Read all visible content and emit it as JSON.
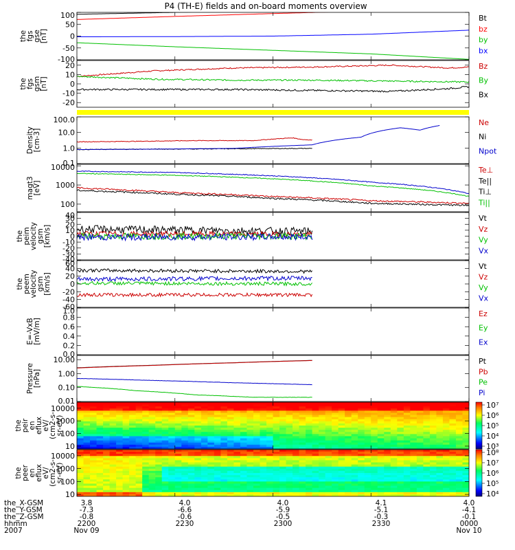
{
  "chart_data": {
    "type": "line",
    "title": "P4 (TH-E) fields and on-board moments overview",
    "x_tick_times": [
      "2200",
      "2230",
      "2300",
      "2330",
      "0000"
    ],
    "x_range_hours": [
      0,
      2
    ],
    "footer": {
      "rows": [
        {
          "label": "the_X-GSM",
          "values": [
            "3.8",
            "4.0",
            "4.0",
            "4.1",
            "4.0"
          ]
        },
        {
          "label": "the_Y-GSM",
          "values": [
            "-7.3",
            "-6.6",
            "-5.9",
            "-5.1",
            "-4.1"
          ]
        },
        {
          "label": "the_Z-GSM",
          "values": [
            "-0.8",
            "-0.6",
            "-0.5",
            "-0.3",
            "-0.1"
          ]
        },
        {
          "label": "hhmm",
          "values": [
            "2200",
            "2230",
            "2300",
            "2330",
            "0000"
          ]
        },
        {
          "label": "2007",
          "values": [
            "Nov 09",
            "",
            "",
            "",
            "Nov 10"
          ]
        }
      ]
    },
    "panels": [
      {
        "id": "fgs-gse",
        "ylabel": [
          "the",
          "fgs",
          "gse",
          "[nT]"
        ],
        "scale": "linear",
        "ylim": [
          -100,
          100
        ],
        "ticks": [
          "100",
          "50",
          "0",
          "-50",
          "-100"
        ],
        "tick_values": [
          100,
          50,
          0,
          -50,
          -100
        ],
        "legend": [
          {
            "name": "Bt",
            "color": "#000000"
          },
          {
            "name": "bz",
            "color": "#ff0000"
          },
          {
            "name": "by",
            "color": "#00c000"
          },
          {
            "name": "bx",
            "color": "#0000ff"
          }
        ],
        "series": [
          {
            "name": "Bt",
            "color": "#000000",
            "x": [
              0,
              0.5,
              1.0
            ],
            "y": [
              92,
              100,
              108
            ],
            "noise": 0
          },
          {
            "name": "bz",
            "color": "#ff0000",
            "x": [
              0,
              0.5,
              1.0,
              1.4
            ],
            "y": [
              70,
              83,
              95,
              104
            ],
            "noise": 0
          },
          {
            "name": "by",
            "color": "#00c000",
            "x": [
              0,
              0.5,
              1.0,
              1.5,
              2.0
            ],
            "y": [
              -28,
              -45,
              -60,
              -75,
              -98
            ],
            "noise": 0
          },
          {
            "name": "bx",
            "color": "#0000ff",
            "x": [
              0,
              0.5,
              1.0,
              1.5,
              2.0
            ],
            "y": [
              -3,
              -2,
              0,
              8,
              25
            ],
            "noise": 0
          }
        ]
      },
      {
        "id": "fgs-gsm",
        "ylabel": [
          "the",
          "fgs",
          "gsm",
          "[nT]"
        ],
        "scale": "linear",
        "ylim": [
          -25,
          25
        ],
        "ticks": [
          "20",
          "10",
          "0",
          "-10",
          "-20"
        ],
        "tick_values": [
          20,
          10,
          0,
          -10,
          -20
        ],
        "legend": [
          {
            "name": "Bz",
            "color": "#cc0000"
          },
          {
            "name": "By",
            "color": "#00c000"
          },
          {
            "name": "Bx",
            "color": "#000000"
          }
        ],
        "series": [
          {
            "name": "Bz",
            "color": "#cc0000",
            "x": [
              0,
              0.4,
              0.8,
              1.2,
              1.6,
              1.9,
              2.0
            ],
            "y": [
              8,
              14,
              17,
              18,
              20,
              17,
              18
            ],
            "noise": 0.6
          },
          {
            "name": "By",
            "color": "#00c000",
            "x": [
              0,
              0.4,
              0.8,
              1.2,
              1.6,
              2.0
            ],
            "y": [
              8,
              5,
              4,
              4,
              3,
              2
            ],
            "noise": 0.7
          },
          {
            "name": "Bx",
            "color": "#000000",
            "x": [
              0,
              0.4,
              0.8,
              1.2,
              1.6,
              1.9,
              2.0
            ],
            "y": [
              -6,
              -6,
              -6,
              -7,
              -8,
              -5,
              -3
            ],
            "noise": 0.8
          }
        ]
      },
      {
        "id": "density",
        "ylabel": [
          "Density",
          "[cm-3]"
        ],
        "scale": "log",
        "ylim": [
          0.1,
          100
        ],
        "ticks": [
          "100.0",
          "10.0",
          "1.0",
          "0.1"
        ],
        "tick_values": [
          100,
          10,
          1,
          0.1
        ],
        "legend": [
          {
            "name": "Ne",
            "color": "#cc0000"
          },
          {
            "name": "Ni",
            "color": "#000000"
          },
          {
            "name": "Npot",
            "color": "#0000cc"
          }
        ],
        "series": [
          {
            "name": "Ne",
            "color": "#cc0000",
            "x": [
              0,
              0.3,
              0.6,
              0.9,
              1.1,
              1.15,
              1.2
            ],
            "y": [
              2.5,
              2.7,
              3.0,
              3.0,
              4.5,
              3.5,
              3.3
            ],
            "noise": 0.02
          },
          {
            "name": "Ni",
            "color": "#000000",
            "x": [
              0,
              0.4,
              0.8,
              1.2
            ],
            "y": [
              0.8,
              0.85,
              0.9,
              0.95
            ],
            "noise": 0.02
          },
          {
            "name": "Npot",
            "color": "#0000cc",
            "x": [
              0,
              0.4,
              0.8,
              1.2,
              1.45,
              1.65,
              1.75,
              1.85
            ],
            "y": [
              0.8,
              0.85,
              0.95,
              1.6,
              5,
              20,
              14,
              28
            ],
            "noise": 0.0
          }
        ]
      },
      {
        "id": "temperature",
        "ylabel": [
          "magt3",
          "[eV]"
        ],
        "scale": "log",
        "ylim": [
          40,
          12000
        ],
        "ticks": [
          "10000",
          "1000",
          "100"
        ],
        "tick_values": [
          10000,
          1000,
          100
        ],
        "legend": [
          {
            "name": "Te⊥",
            "color": "#cc0000"
          },
          {
            "name": "Te||",
            "color": "#000000"
          },
          {
            "name": "Ti⊥",
            "color": "#000000"
          },
          {
            "name": "Ti||",
            "color": "#00c000"
          }
        ],
        "series": [
          {
            "name": "Ti⊥",
            "color": "#0000cc",
            "x": [
              0,
              0.5,
              1.0,
              1.5,
              2.0
            ],
            "y": [
              5200,
              4500,
              3000,
              1400,
              350
            ],
            "noise": 0.02
          },
          {
            "name": "Ti||",
            "color": "#00c000",
            "x": [
              0,
              0.5,
              1.0,
              1.5,
              2.0
            ],
            "y": [
              4000,
              3200,
              2100,
              900,
              250
            ],
            "noise": 0.02
          },
          {
            "name": "Te⊥",
            "color": "#cc0000",
            "x": [
              0,
              0.5,
              1.0,
              1.5,
              2.0
            ],
            "y": [
              700,
              400,
              250,
              150,
              110
            ],
            "noise": 0.04
          },
          {
            "name": "Te||",
            "color": "#000000",
            "x": [
              0,
              0.5,
              1.0,
              1.5,
              2.0
            ],
            "y": [
              520,
              330,
              200,
              110,
              85
            ],
            "noise": 0.04
          }
        ]
      },
      {
        "id": "peim-velocity",
        "ylabel": [
          "the",
          "peim",
          "velocity",
          "gsm",
          "[km/s]"
        ],
        "scale": "linear",
        "ylim": [
          -40,
          40
        ],
        "ticks": [
          "40",
          "30",
          "20",
          "10",
          "0",
          "-10",
          "-20",
          "-30",
          "-40"
        ],
        "tick_values": [
          40,
          30,
          20,
          10,
          0,
          -10,
          -20,
          -30,
          -40
        ],
        "legend": [
          {
            "name": "Vt",
            "color": "#000000"
          },
          {
            "name": "Vz",
            "color": "#cc0000"
          },
          {
            "name": "Vy",
            "color": "#00c000"
          },
          {
            "name": "Vx",
            "color": "#0000cc"
          }
        ],
        "series": [
          {
            "name": "Vt",
            "color": "#000000",
            "x": [
              0,
              1.2
            ],
            "y": [
              12,
              8
            ],
            "noise": 6
          },
          {
            "name": "Vz",
            "color": "#cc0000",
            "x": [
              0,
              1.2
            ],
            "y": [
              4,
              3
            ],
            "noise": 4
          },
          {
            "name": "Vy",
            "color": "#00c000",
            "x": [
              0,
              1.2
            ],
            "y": [
              0,
              0
            ],
            "noise": 5
          },
          {
            "name": "Vx",
            "color": "#0000cc",
            "x": [
              0,
              1.2
            ],
            "y": [
              -2,
              -1
            ],
            "noise": 5
          }
        ]
      },
      {
        "id": "peem-velocity",
        "ylabel": [
          "the",
          "peem",
          "velocity",
          "gsm",
          "[km/s]"
        ],
        "scale": "linear",
        "ylim": [
          -60,
          60
        ],
        "ticks": [
          "60",
          "40",
          "20",
          "0",
          "-20",
          "-40",
          "-60"
        ],
        "tick_values": [
          60,
          40,
          20,
          0,
          -20,
          -40,
          -60
        ],
        "legend": [
          {
            "name": "Vt",
            "color": "#000000"
          },
          {
            "name": "Vz",
            "color": "#cc0000"
          },
          {
            "name": "Vy",
            "color": "#00c000"
          },
          {
            "name": "Vx",
            "color": "#0000cc"
          }
        ],
        "series": [
          {
            "name": "Vt",
            "color": "#000000",
            "x": [
              0,
              1.2
            ],
            "y": [
              35,
              32
            ],
            "noise": 4
          },
          {
            "name": "Vx",
            "color": "#0000cc",
            "x": [
              0,
              1.2
            ],
            "y": [
              12,
              15
            ],
            "noise": 5
          },
          {
            "name": "Vy",
            "color": "#00c000",
            "x": [
              0,
              1.2
            ],
            "y": [
              2,
              0
            ],
            "noise": 4
          },
          {
            "name": "Vz",
            "color": "#cc0000",
            "x": [
              0,
              1.2
            ],
            "y": [
              -28,
              -28
            ],
            "noise": 4
          }
        ]
      },
      {
        "id": "efield",
        "ylabel": [
          "E=-VxB",
          "[mV/m]"
        ],
        "scale": "linear",
        "ylim": [
          0,
          1
        ],
        "ticks": [
          "1.0",
          "0.8",
          "0.6",
          "0.4",
          "0.2",
          "0.0"
        ],
        "tick_values": [
          1,
          0.8,
          0.6,
          0.4,
          0.2,
          0
        ],
        "legend": [
          {
            "name": "Ez",
            "color": "#cc0000"
          },
          {
            "name": "Ey",
            "color": "#00c000"
          },
          {
            "name": "Ex",
            "color": "#0000cc"
          }
        ],
        "series": []
      },
      {
        "id": "pressure",
        "ylabel": [
          "Pressure",
          "[nPa]"
        ],
        "scale": "log",
        "ylim": [
          0.01,
          20
        ],
        "ticks": [
          "10.00",
          "1.00",
          "0.10",
          "0.01"
        ],
        "tick_values": [
          10,
          1,
          0.1,
          0.01
        ],
        "legend": [
          {
            "name": "Pt",
            "color": "#000000"
          },
          {
            "name": "Pb",
            "color": "#cc0000"
          },
          {
            "name": "Pe",
            "color": "#00c000"
          },
          {
            "name": "Pi",
            "color": "#0000cc"
          }
        ],
        "series": [
          {
            "name": "Pt",
            "color": "#000000",
            "x": [
              0,
              0.4,
              0.8,
              1.2
            ],
            "y": [
              2.6,
              4.0,
              6.0,
              8.8
            ],
            "noise": 0
          },
          {
            "name": "Pb",
            "color": "#cc0000",
            "x": [
              0,
              0.4,
              0.8,
              1.2
            ],
            "y": [
              2.5,
              3.9,
              5.9,
              8.6
            ],
            "noise": 0
          },
          {
            "name": "Pi",
            "color": "#0000cc",
            "x": [
              0,
              0.4,
              0.8,
              1.2
            ],
            "y": [
              0.45,
              0.32,
              0.22,
              0.16
            ],
            "noise": 0.01
          },
          {
            "name": "Pe",
            "color": "#00c000",
            "x": [
              0,
              0.3,
              0.6,
              0.9,
              1.2
            ],
            "y": [
              0.12,
              0.06,
              0.03,
              0.02,
              0.02
            ],
            "noise": 0.01
          }
        ]
      },
      {
        "id": "peir-spectrogram",
        "type": "heatmap",
        "ylabel": [
          "the",
          "peir",
          "en",
          "eflux",
          "eV/",
          "(cm2-s-",
          "sr-eV)"
        ],
        "scale": "log",
        "ylim": [
          6,
          30000
        ],
        "ticks": [
          "10000",
          "1000",
          "100",
          "10"
        ],
        "tick_values": [
          10000,
          1000,
          100,
          10
        ],
        "colorbar": {
          "ticks": [
            "10⁷",
            "10⁶",
            "10⁵",
            "10⁴",
            "10³"
          ]
        }
      },
      {
        "id": "peer-spectrogram",
        "type": "heatmap",
        "ylabel": [
          "the",
          "peer",
          "en",
          "eflux",
          "eV/",
          "(cm2-s-",
          "sr-eV)"
        ],
        "scale": "log",
        "ylim": [
          7,
          30000
        ],
        "ticks": [
          "10000",
          "1000",
          "100",
          "10"
        ],
        "tick_values": [
          10000,
          1000,
          100,
          10
        ],
        "colorbar": {
          "ticks": [
            "10⁸",
            "10⁷",
            "10⁶",
            "10⁵",
            "10⁴"
          ]
        }
      }
    ]
  }
}
